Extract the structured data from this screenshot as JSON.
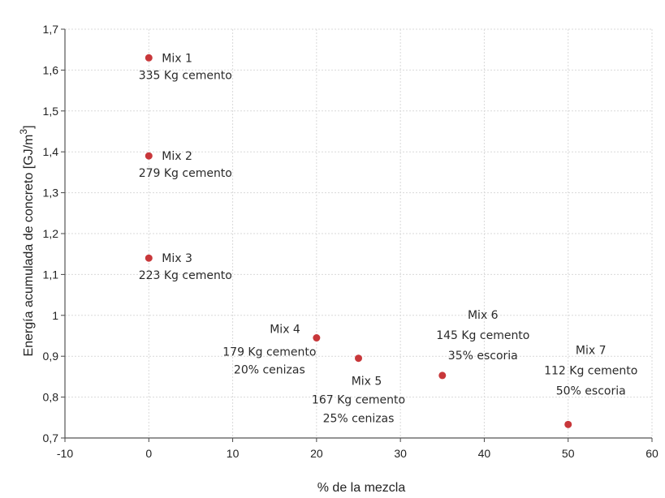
{
  "chart_data": {
    "type": "scatter",
    "title": "",
    "xlabel": "% de la mezcla",
    "ylabel": "Energía acumulada de concreto [GJ/m",
    "ylabel_superscript": "3",
    "ylabel_suffix": "]",
    "xlim": [
      -10,
      60
    ],
    "ylim": [
      0.7,
      1.7
    ],
    "grid": true,
    "x_ticks": [
      -10,
      0,
      10,
      20,
      30,
      40,
      50,
      60
    ],
    "x_tick_labels": [
      "-10",
      "0",
      "10",
      "20",
      "30",
      "40",
      "50",
      "60"
    ],
    "y_ticks": [
      0.7,
      0.8,
      0.9,
      1.0,
      1.1,
      1.2,
      1.3,
      1.4,
      1.5,
      1.6,
      1.7
    ],
    "y_tick_labels": [
      "0,7",
      "0,8",
      "0,9",
      "1",
      "1,1",
      "1,2",
      "1,3",
      "1,4",
      "1,5",
      "1,6",
      "1,7"
    ],
    "marker_color": "#c8373a",
    "points": [
      {
        "x": 0,
        "y": 1.63,
        "labels": [
          "Mix 1",
          "335 Kg cemento"
        ],
        "label_pos": "right-below"
      },
      {
        "x": 0,
        "y": 1.39,
        "labels": [
          "Mix 2",
          "279 Kg cemento"
        ],
        "label_pos": "right-below"
      },
      {
        "x": 0,
        "y": 1.14,
        "labels": [
          "Mix 3",
          "223 Kg cemento"
        ],
        "label_pos": "right-below"
      },
      {
        "x": 20,
        "y": 0.945,
        "labels": [
          "Mix 4",
          "179 Kg cemento",
          "20% cenizas"
        ],
        "label_pos": "left-stack"
      },
      {
        "x": 25,
        "y": 0.895,
        "labels": [
          "Mix 5",
          "167 Kg cemento",
          "25% cenizas"
        ],
        "label_pos": "below-stack"
      },
      {
        "x": 35,
        "y": 0.853,
        "labels": [
          "Mix 6",
          "145 Kg cemento",
          "35% escoria"
        ],
        "label_pos": "above-stack"
      },
      {
        "x": 50,
        "y": 0.733,
        "labels": [
          "Mix 7",
          "112 Kg cemento",
          "50% escoria"
        ],
        "label_pos": "above-stack-right"
      }
    ]
  }
}
